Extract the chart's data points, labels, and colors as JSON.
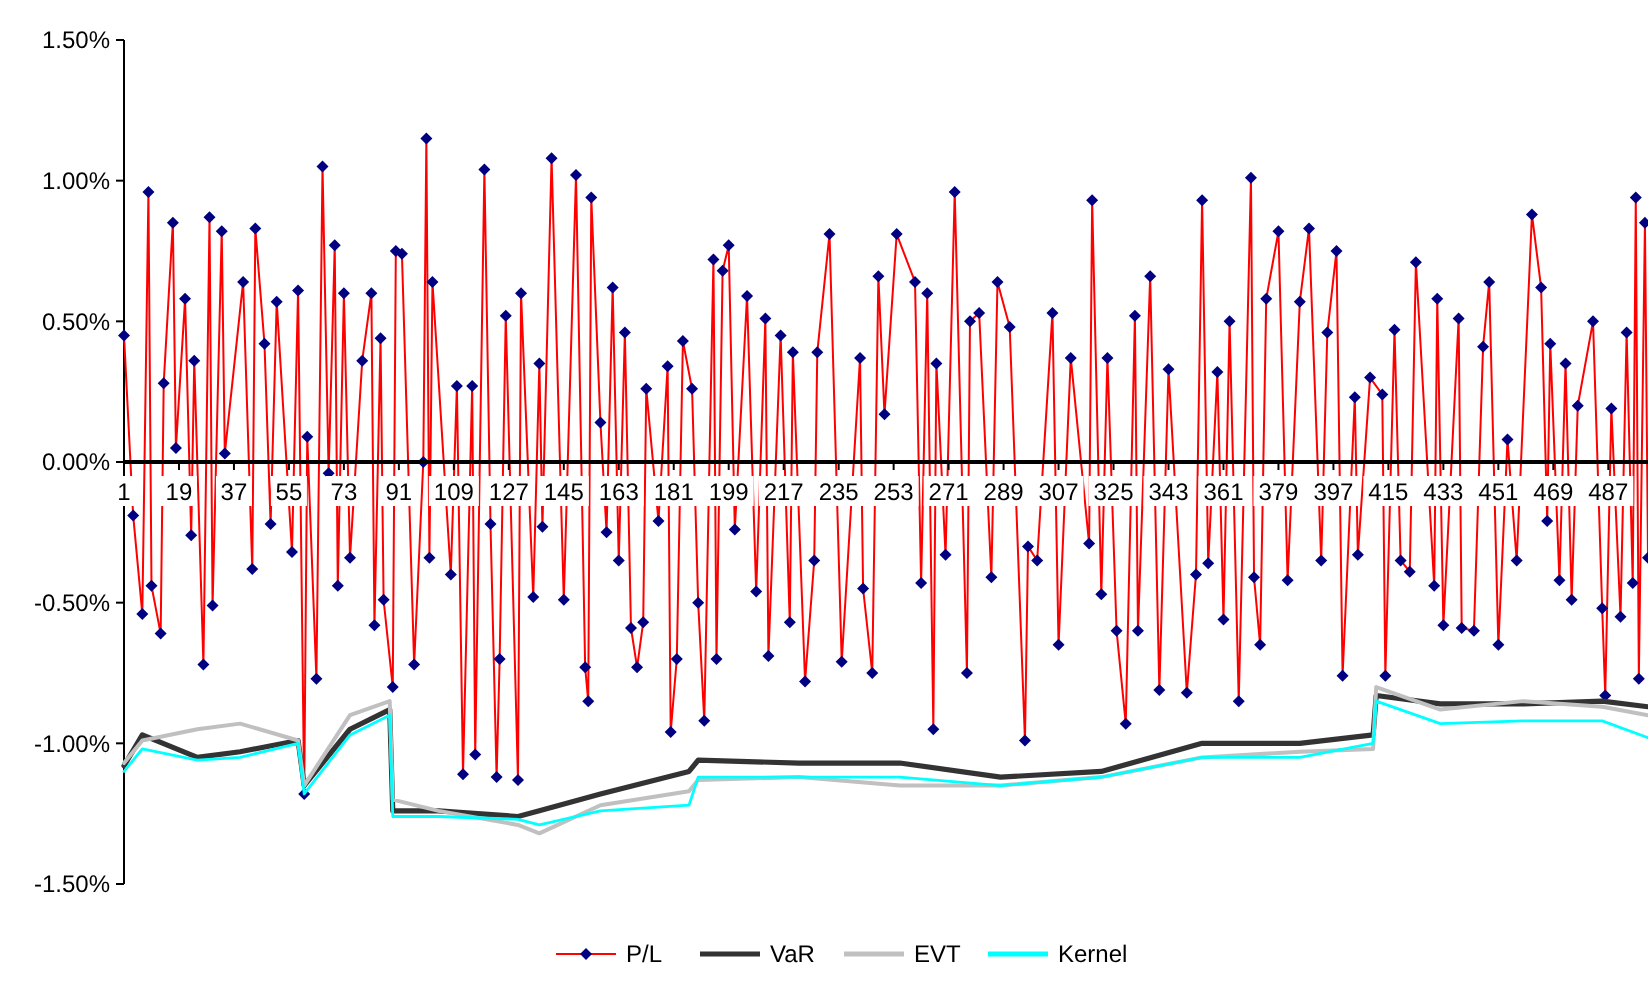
{
  "chart_data": {
    "type": "line",
    "xlim": [
      1,
      500
    ],
    "xticks": [
      1,
      19,
      37,
      55,
      73,
      91,
      109,
      127,
      145,
      163,
      181,
      199,
      217,
      235,
      253,
      271,
      289,
      307,
      325,
      343,
      361,
      379,
      397,
      415,
      433,
      451,
      469,
      487
    ],
    "ylim": [
      -1.5,
      1.5
    ],
    "yticks": [
      {
        "value": -1.5,
        "label": "-1.50%"
      },
      {
        "value": -1.0,
        "label": "-1.00%"
      },
      {
        "value": -0.5,
        "label": "-0.50%"
      },
      {
        "value": 0,
        "label": "0.00%"
      },
      {
        "value": 0.5,
        "label": "0.50%"
      },
      {
        "value": 1.0,
        "label": "1.00%"
      },
      {
        "value": 1.5,
        "label": "1.50%"
      }
    ],
    "grid": false,
    "legend": "bottom",
    "line_style": "solid",
    "series": [
      {
        "name": "P/L",
        "color": "#ff0000",
        "marker": "diamond",
        "x": [
          1,
          4,
          7,
          9,
          10,
          13,
          14,
          17,
          18,
          21,
          23,
          24,
          27,
          29,
          30,
          33,
          34,
          40,
          43,
          44,
          47,
          49,
          51,
          56,
          58,
          60,
          61,
          64,
          66,
          68,
          70,
          71,
          73,
          75,
          79,
          82,
          83,
          85,
          86,
          89,
          90,
          92,
          96,
          99,
          100,
          101,
          102,
          108,
          110,
          112,
          115,
          116,
          119,
          121,
          123,
          124,
          126,
          130,
          131,
          135,
          137,
          138,
          141,
          145,
          149,
          152,
          153,
          154,
          157,
          159,
          161,
          163,
          165,
          167,
          169,
          171,
          172,
          176,
          179,
          180,
          182,
          184,
          187,
          189,
          191,
          194,
          195,
          197,
          199,
          201,
          205,
          208,
          211,
          212,
          216,
          219,
          220,
          224,
          227,
          228,
          232,
          236,
          242,
          243,
          246,
          248,
          250,
          254,
          260,
          262,
          264,
          266,
          267,
          270,
          273,
          277,
          278,
          281,
          285,
          287,
          291,
          296,
          297,
          300,
          305,
          307,
          311,
          317,
          318,
          321,
          323,
          326,
          329,
          332,
          333,
          337,
          340,
          343,
          349,
          352,
          354,
          356,
          359,
          361,
          363,
          366,
          370,
          371,
          373,
          375,
          379,
          382,
          386,
          389,
          393,
          395,
          398,
          400,
          404,
          405,
          409,
          413,
          414,
          417,
          419,
          422,
          424,
          430,
          431,
          433,
          438,
          439,
          443,
          446,
          448,
          451,
          454,
          457,
          462,
          465,
          467,
          468,
          471,
          473,
          475,
          477,
          482,
          485,
          486,
          488,
          491,
          493,
          495,
          496,
          497,
          499,
          500
        ],
        "values": [
          0.45,
          -0.19,
          -0.54,
          0.96,
          -0.44,
          -0.61,
          0.28,
          0.85,
          0.05,
          0.58,
          -0.26,
          0.36,
          -0.72,
          0.87,
          -0.51,
          0.82,
          0.03,
          0.64,
          -0.38,
          0.83,
          0.42,
          -0.22,
          0.57,
          -0.32,
          0.61,
          -1.18,
          0.09,
          -0.77,
          1.05,
          -0.04,
          0.77,
          -0.44,
          0.6,
          -0.34,
          0.36,
          0.6,
          -0.58,
          0.44,
          -0.49,
          -0.8,
          0.75,
          0.74,
          -0.72,
          0.0,
          1.15,
          -0.34,
          0.64,
          -0.4,
          0.27,
          -1.11,
          0.27,
          -1.04,
          1.04,
          -0.22,
          -1.12,
          -0.7,
          0.52,
          -1.13,
          0.6,
          -0.48,
          0.35,
          -0.23,
          1.08,
          -0.49,
          1.02,
          -0.73,
          -0.85,
          0.94,
          0.14,
          -0.25,
          0.62,
          -0.35,
          0.46,
          -0.59,
          -0.73,
          -0.57,
          0.26,
          -0.21,
          0.34,
          -0.96,
          -0.7,
          0.43,
          0.26,
          -0.5,
          -0.92,
          0.72,
          -0.7,
          0.68,
          0.77,
          -0.24,
          0.59,
          -0.46,
          0.51,
          -0.69,
          0.45,
          -0.57,
          0.39,
          -0.78,
          -0.35,
          0.39,
          0.81,
          -0.71,
          0.37,
          -0.45,
          -0.75,
          0.66,
          0.17,
          0.81,
          0.64,
          -0.43,
          0.6,
          -0.95,
          0.35,
          -0.33,
          0.96,
          -0.75,
          0.5,
          0.53,
          -0.41,
          0.64,
          0.48,
          -0.99,
          -0.3,
          -0.35,
          0.53,
          -0.65,
          0.37,
          -0.29,
          0.93,
          -0.47,
          0.37,
          -0.6,
          -0.93,
          0.52,
          -0.6,
          0.66,
          -0.81,
          0.33,
          -0.82,
          -0.4,
          0.93,
          -0.36,
          0.32,
          -0.56,
          0.5,
          -0.85,
          1.01,
          -0.41,
          -0.65,
          0.58,
          0.82,
          -0.42,
          0.57,
          0.83,
          -0.35,
          0.46,
          0.75,
          -0.76,
          0.23,
          -0.33,
          0.3,
          0.24,
          -0.76,
          0.47,
          -0.35,
          -0.39,
          0.71,
          -0.44,
          0.58,
          -0.58,
          0.51,
          -0.59,
          -0.6,
          0.41,
          0.64,
          -0.65,
          0.08,
          -0.35,
          0.88,
          0.62,
          -0.21,
          0.42,
          -0.42,
          0.35,
          -0.49,
          0.2,
          0.5,
          -0.52,
          -0.83,
          0.19,
          -0.55,
          0.46,
          -0.43,
          0.94,
          -0.77,
          0.85,
          -0.34
        ]
      },
      {
        "name": "VaR",
        "color": "#333333",
        "marker": "none",
        "x": [
          1,
          7,
          25,
          39,
          58,
          60,
          75,
          88,
          89,
          104,
          130,
          137,
          157,
          186,
          189,
          222,
          255,
          288,
          321,
          354,
          386,
          410,
          411,
          432,
          459,
          485,
          500
        ],
        "values": [
          -1.08,
          -0.97,
          -1.05,
          -1.03,
          -0.99,
          -1.15,
          -0.95,
          -0.88,
          -1.24,
          -1.24,
          -1.26,
          -1.24,
          -1.18,
          -1.1,
          -1.06,
          -1.07,
          -1.07,
          -1.12,
          -1.1,
          -1.0,
          -1.0,
          -0.97,
          -0.83,
          -0.86,
          -0.86,
          -0.85,
          -0.87
        ]
      },
      {
        "name": "EVT",
        "color": "#c0c0c0",
        "marker": "none",
        "x": [
          1,
          7,
          25,
          39,
          58,
          60,
          75,
          88,
          89,
          104,
          130,
          137,
          157,
          186,
          189,
          222,
          255,
          288,
          321,
          354,
          386,
          410,
          411,
          432,
          459,
          485,
          500
        ],
        "values": [
          -1.07,
          -0.99,
          -0.95,
          -0.93,
          -0.99,
          -1.15,
          -0.9,
          -0.85,
          -1.2,
          -1.24,
          -1.29,
          -1.32,
          -1.22,
          -1.17,
          -1.13,
          -1.12,
          -1.15,
          -1.15,
          -1.12,
          -1.05,
          -1.03,
          -1.02,
          -0.8,
          -0.88,
          -0.85,
          -0.87,
          -0.9
        ]
      },
      {
        "name": "Kernel",
        "color": "#00ffff",
        "marker": "none",
        "x": [
          1,
          7,
          25,
          39,
          58,
          60,
          75,
          88,
          89,
          104,
          130,
          137,
          157,
          186,
          189,
          222,
          255,
          288,
          321,
          354,
          386,
          410,
          411,
          432,
          459,
          485,
          500
        ],
        "values": [
          -1.1,
          -1.02,
          -1.06,
          -1.05,
          -1.0,
          -1.18,
          -0.97,
          -0.9,
          -1.26,
          -1.26,
          -1.27,
          -1.29,
          -1.24,
          -1.22,
          -1.12,
          -1.12,
          -1.12,
          -1.15,
          -1.12,
          -1.05,
          -1.05,
          -1.0,
          -0.85,
          -0.93,
          -0.92,
          -0.92,
          -0.98
        ]
      }
    ]
  }
}
